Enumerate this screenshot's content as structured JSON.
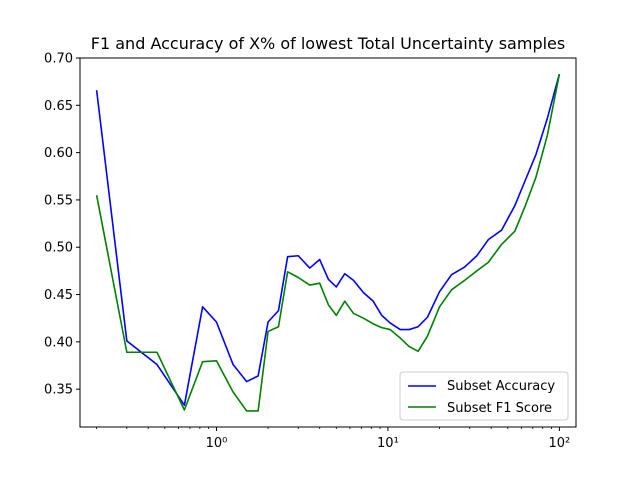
{
  "chart_data": {
    "type": "line",
    "title": "F1 and Accuracy of X% of lowest Total Uncertainty samples",
    "xlabel": "",
    "ylabel": "",
    "xscale": "log",
    "xlim": [
      0.16,
      125
    ],
    "ylim": [
      0.31,
      0.7
    ],
    "xticks": [
      {
        "value": 1,
        "label": "10⁰"
      },
      {
        "value": 10,
        "label": "10¹"
      },
      {
        "value": 100,
        "label": "10²"
      }
    ],
    "yticks": [
      0.35,
      0.4,
      0.45,
      0.5,
      0.55,
      0.6,
      0.65,
      0.7
    ],
    "grid": false,
    "legend_position": "lower-right",
    "series": [
      {
        "name": "Subset Accuracy",
        "color": "#0000ff",
        "x": [
          0.2,
          0.3,
          0.45,
          0.65,
          0.83,
          1.0,
          1.25,
          1.5,
          1.75,
          2.0,
          2.3,
          2.6,
          3.0,
          3.5,
          4.0,
          4.5,
          5.0,
          5.6,
          6.3,
          7.2,
          8.2,
          9.2,
          10.3,
          11.8,
          13.3,
          15.0,
          17.0,
          20.0,
          23.5,
          28.0,
          33.0,
          38.5,
          46.0,
          55.0,
          63.0,
          73.0,
          85.0,
          100.0
        ],
        "y": [
          0.666,
          0.401,
          0.376,
          0.333,
          0.437,
          0.421,
          0.376,
          0.358,
          0.364,
          0.421,
          0.433,
          0.49,
          0.491,
          0.478,
          0.487,
          0.466,
          0.458,
          0.472,
          0.465,
          0.452,
          0.443,
          0.428,
          0.42,
          0.413,
          0.413,
          0.416,
          0.426,
          0.453,
          0.471,
          0.479,
          0.491,
          0.508,
          0.518,
          0.544,
          0.57,
          0.598,
          0.636,
          0.683
        ]
      },
      {
        "name": "Subset F1 Score",
        "color": "#008000",
        "x": [
          0.2,
          0.3,
          0.45,
          0.65,
          0.83,
          1.0,
          1.25,
          1.5,
          1.75,
          2.0,
          2.3,
          2.6,
          3.0,
          3.5,
          4.0,
          4.5,
          5.0,
          5.6,
          6.3,
          7.2,
          8.2,
          9.2,
          10.3,
          11.8,
          13.3,
          15.0,
          17.0,
          20.0,
          23.5,
          28.0,
          33.0,
          38.5,
          46.0,
          55.0,
          63.0,
          73.0,
          85.0,
          100.0
        ],
        "y": [
          0.555,
          0.389,
          0.389,
          0.328,
          0.379,
          0.38,
          0.347,
          0.327,
          0.327,
          0.411,
          0.416,
          0.474,
          0.468,
          0.46,
          0.462,
          0.439,
          0.428,
          0.443,
          0.43,
          0.425,
          0.419,
          0.415,
          0.413,
          0.404,
          0.395,
          0.39,
          0.406,
          0.437,
          0.455,
          0.465,
          0.475,
          0.484,
          0.503,
          0.517,
          0.543,
          0.574,
          0.618,
          0.683
        ]
      }
    ]
  }
}
